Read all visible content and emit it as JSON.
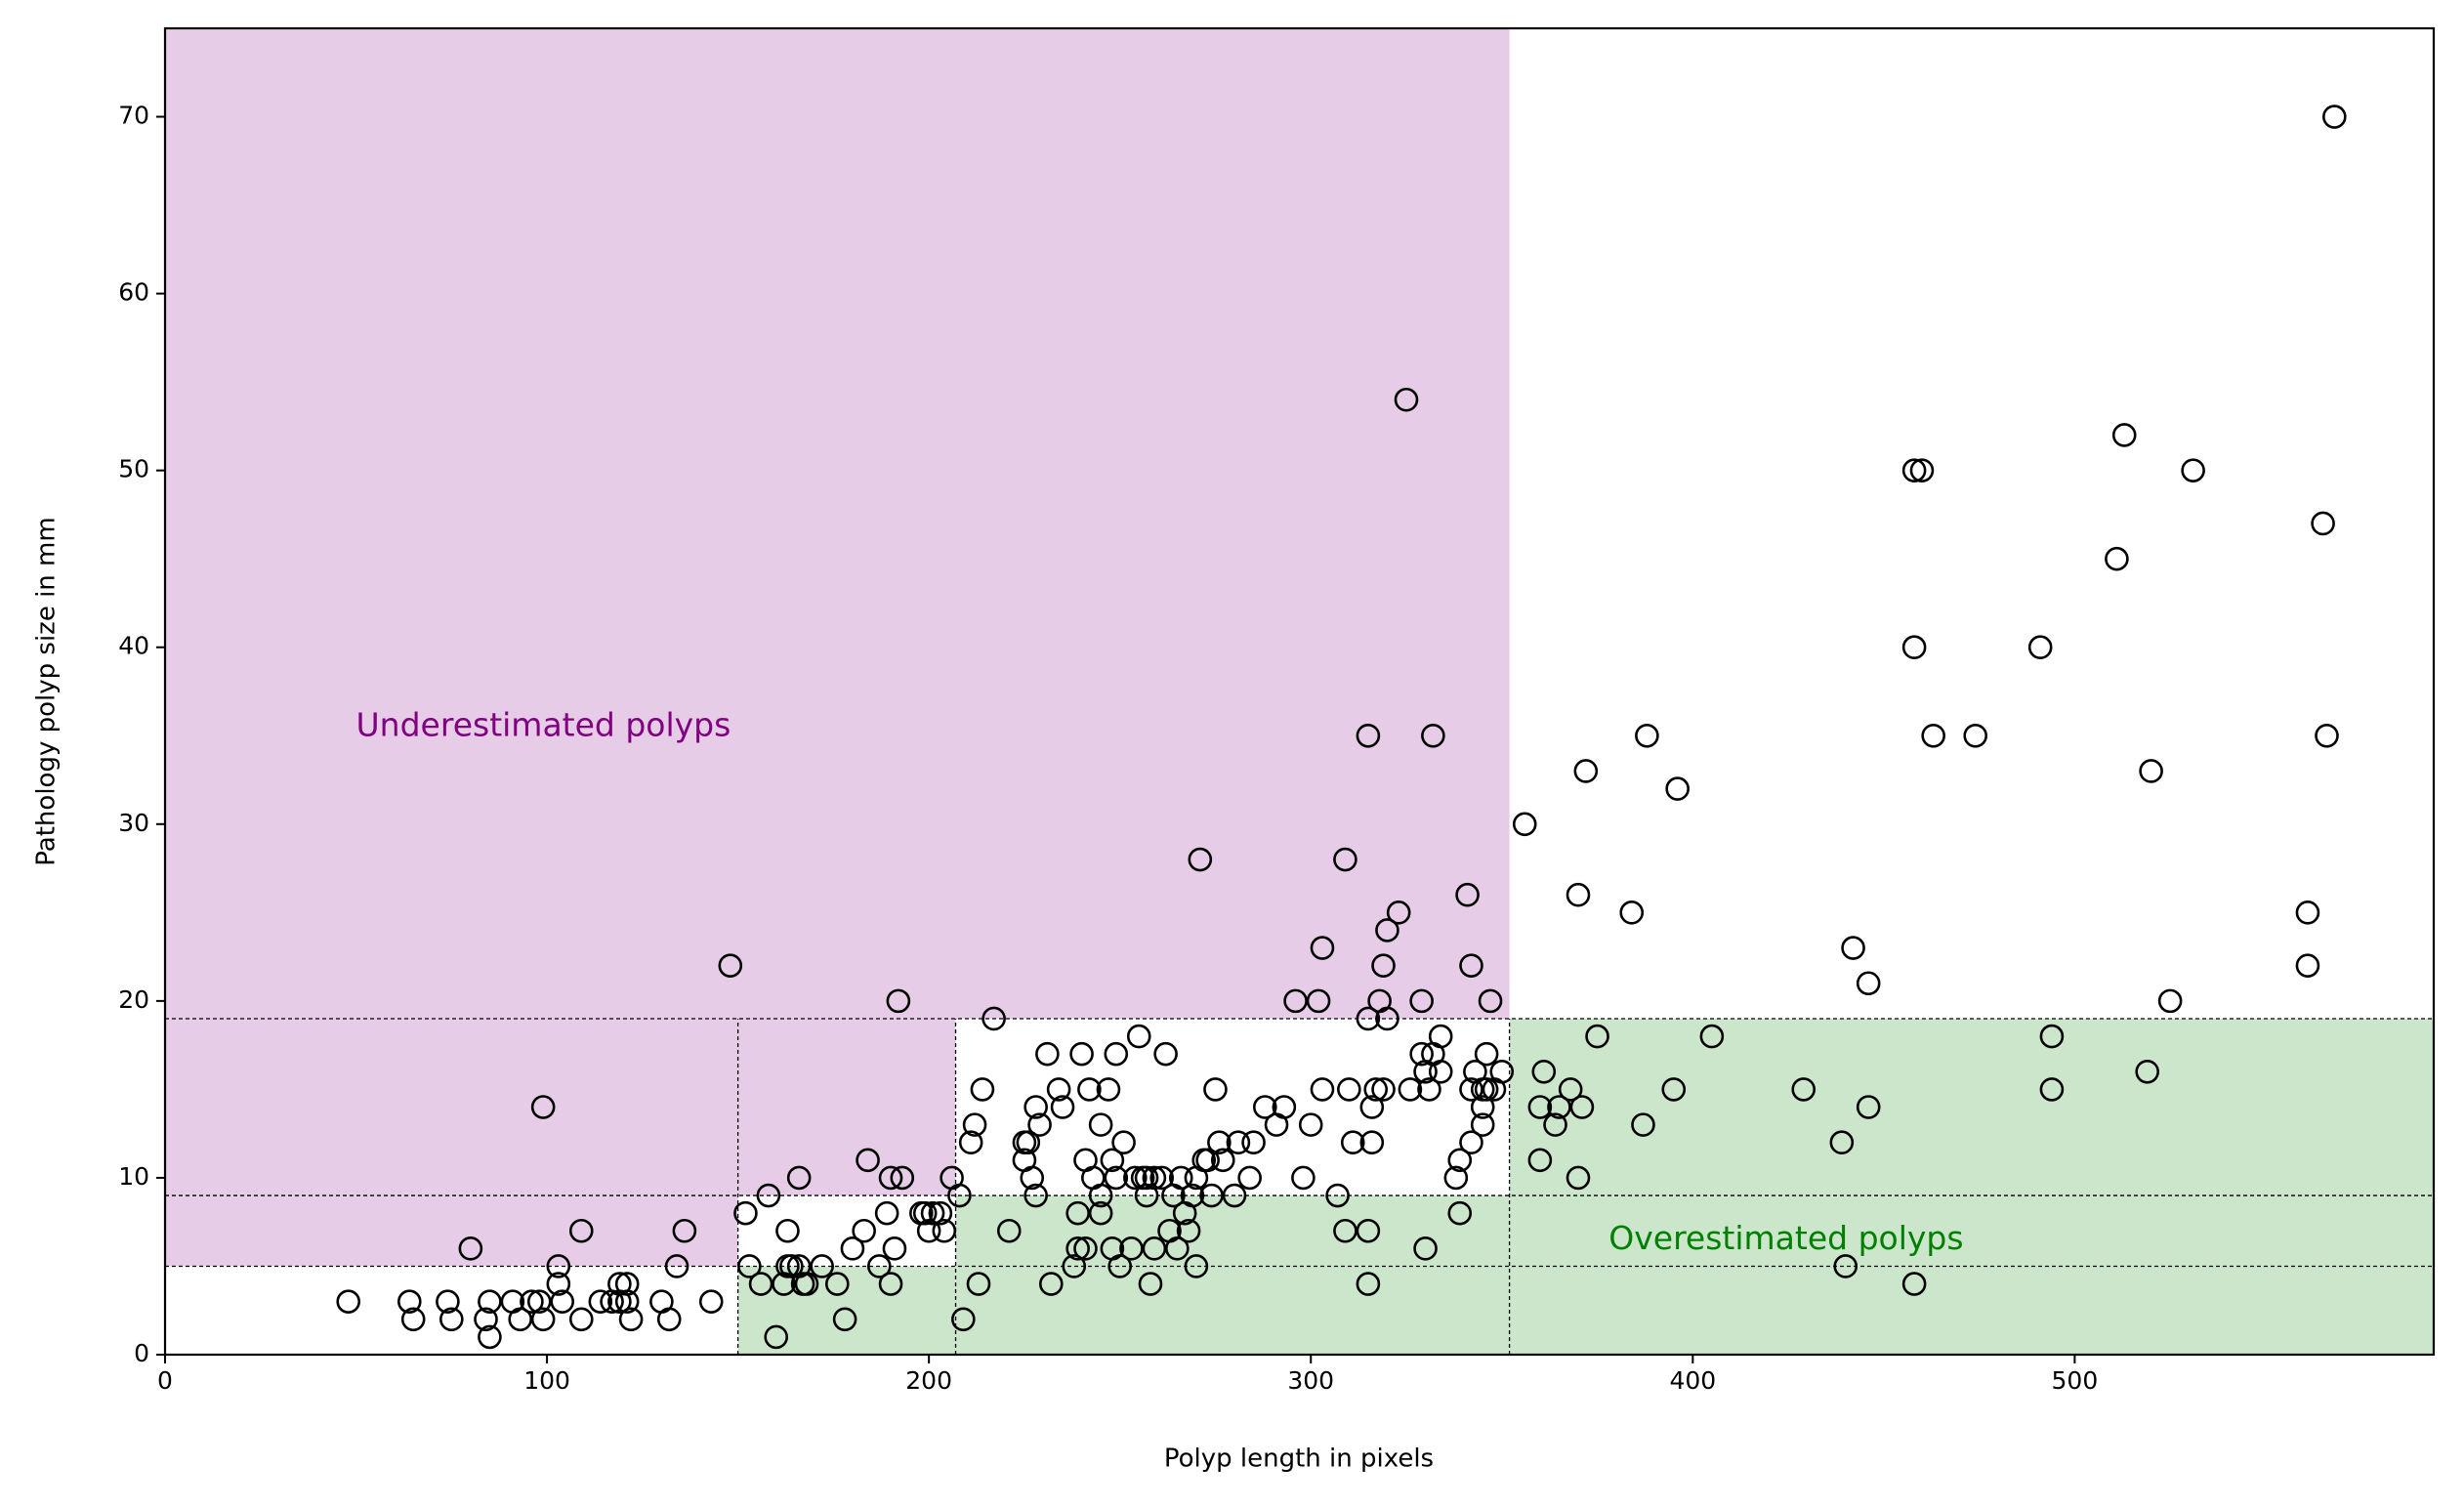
{
  "chart_data": {
    "type": "scatter",
    "xlabel": "Polyp length in pixels",
    "ylabel": "Pathology polyp size in mm",
    "xlim": [
      0,
      594
    ],
    "ylim": [
      0,
      75
    ],
    "xticks": [
      0,
      100,
      200,
      300,
      400,
      500
    ],
    "yticks": [
      0,
      10,
      20,
      30,
      40,
      50,
      60,
      70
    ],
    "color": "#000000",
    "regions": [
      {
        "x": [
          0,
          150
        ],
        "y": [
          5,
          75
        ],
        "color": "#800080"
      },
      {
        "x": [
          150,
          207
        ],
        "y": [
          9,
          75
        ],
        "color": "#800080"
      },
      {
        "x": [
          207,
          352
        ],
        "y": [
          19,
          75
        ],
        "color": "#800080"
      },
      {
        "x": [
          150,
          207
        ],
        "y": [
          0,
          5
        ],
        "color": "#008000"
      },
      {
        "x": [
          207,
          352
        ],
        "y": [
          0,
          9
        ],
        "color": "#008000"
      },
      {
        "x": [
          352,
          594
        ],
        "y": [
          0,
          19
        ],
        "color": "#008000"
      }
    ],
    "threshold_lines": {
      "x": [
        150,
        207,
        352
      ],
      "y": [
        5,
        9,
        19
      ]
    },
    "annotations": [
      {
        "text": "Underestimated polyps",
        "x": 50,
        "y": 35.5,
        "color": "#800080"
      },
      {
        "text": "Overestimated polyps",
        "x": 378,
        "y": 6.5,
        "color": "#008000"
      }
    ],
    "x": [
      48,
      64,
      65,
      74,
      75,
      85,
      84,
      85,
      91,
      93,
      96,
      98,
      99,
      103,
      103,
      104,
      109,
      109,
      99,
      114,
      117,
      119,
      119,
      121,
      121,
      122,
      130,
      132,
      134,
      136,
      143,
      80,
      148,
      152,
      153,
      156,
      158,
      160,
      163,
      163,
      162,
      164,
      166,
      166,
      167,
      168,
      172,
      176,
      178,
      180,
      183,
      184,
      187,
      189,
      190,
      190,
      191,
      192,
      193,
      198,
      199,
      200,
      201,
      203,
      204,
      206,
      208,
      209,
      211,
      212,
      213,
      214,
      217,
      221,
      225,
      225,
      226,
      227,
      228,
      228,
      229,
      231,
      232,
      234,
      235,
      238,
      239,
      239,
      240,
      241,
      241,
      242,
      243,
      245,
      245,
      245,
      247,
      248,
      248,
      249,
      249,
      250,
      251,
      253,
      254,
      255,
      256,
      257,
      257,
      258,
      259,
      259,
      261,
      262,
      263,
      264,
      265,
      266,
      267,
      268,
      269,
      270,
      270,
      271,
      272,
      273,
      274,
      275,
      276,
      277,
      280,
      281,
      284,
      285,
      288,
      291,
      293,
      296,
      298,
      300,
      302,
      303,
      303,
      307,
      309,
      309,
      310,
      311,
      315,
      315,
      315,
      316,
      316,
      315,
      317,
      318,
      319,
      320,
      320,
      319,
      323,
      325,
      326,
      329,
      329,
      330,
      330,
      331,
      332,
      332,
      334,
      334,
      338,
      339,
      339,
      341,
      342,
      342,
      342,
      343,
      345,
      345,
      345,
      346,
      347,
      346,
      348,
      350,
      356,
      360,
      360,
      361,
      364,
      365,
      368,
      370,
      370,
      371,
      372,
      375,
      384,
      387,
      388,
      395,
      396,
      405,
      429,
      439,
      440,
      442,
      446,
      446,
      458,
      458,
      458,
      460,
      463,
      474,
      491,
      494,
      494,
      511,
      513,
      519,
      520,
      525,
      531,
      561,
      561,
      565,
      566,
      568
    ],
    "values": [
      3,
      3,
      2,
      3,
      2,
      3,
      2,
      1,
      3,
      2,
      3,
      3,
      2,
      5,
      4,
      3,
      2,
      7,
      14,
      3,
      3,
      4,
      3,
      4,
      3,
      2,
      3,
      2,
      5,
      7,
      3,
      6,
      22,
      8,
      5,
      4,
      9,
      1,
      7,
      5,
      4,
      5,
      5,
      10,
      4,
      4,
      5,
      4,
      2,
      6,
      7,
      11,
      5,
      8,
      10,
      4,
      6,
      20,
      10,
      8,
      8,
      7,
      8,
      8,
      7,
      10,
      9,
      2,
      12,
      13,
      4,
      15,
      19,
      7,
      12,
      11,
      12,
      10,
      9,
      14,
      13,
      17,
      4,
      15,
      14,
      5,
      6,
      8,
      17,
      11,
      6,
      15,
      10,
      13,
      9,
      8,
      15,
      11,
      6,
      17,
      10,
      5,
      12,
      6,
      10,
      18,
      10,
      10,
      9,
      4,
      6,
      10,
      10,
      17,
      7,
      9,
      6,
      10,
      8,
      7,
      9,
      5,
      10,
      28,
      11,
      11,
      9,
      15,
      12,
      11,
      9,
      12,
      10,
      12,
      14,
      13,
      14,
      20,
      10,
      13,
      20,
      23,
      15,
      9,
      28,
      7,
      15,
      12,
      19,
      7,
      4,
      14,
      12,
      35,
      15,
      20,
      22,
      24,
      19,
      15,
      25,
      54,
      15,
      20,
      17,
      16,
      6,
      15,
      35,
      17,
      18,
      16,
      10,
      8,
      11,
      26,
      15,
      12,
      22,
      16,
      13,
      15,
      14,
      17,
      20,
      15,
      15,
      16,
      30,
      11,
      14,
      16,
      13,
      14,
      15,
      26,
      10,
      14,
      33,
      18,
      25,
      13,
      35,
      15,
      32,
      18,
      15,
      12,
      5,
      23,
      21,
      14,
      40,
      4,
      50,
      50,
      35,
      35,
      40,
      18,
      15,
      45,
      52,
      16,
      33,
      20,
      50,
      25,
      22,
      47,
      35,
      70
    ]
  }
}
